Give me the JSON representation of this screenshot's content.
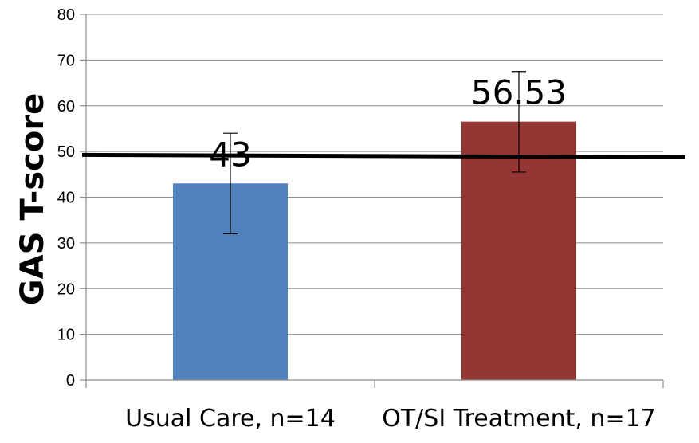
{
  "chart_data": {
    "type": "bar",
    "categories": [
      "Usual Care,  n=14",
      "OT/SI Treatment, n=17"
    ],
    "values": [
      43,
      56.53
    ],
    "data_labels": [
      "43",
      "56.53"
    ],
    "error_bars": [
      {
        "low": 32,
        "high": 54
      },
      {
        "low": 45.5,
        "high": 67.5
      }
    ],
    "reference_line": 49,
    "ylabel": "GAS T-score",
    "ylim": [
      0,
      80
    ],
    "yticks": [
      0,
      10,
      20,
      30,
      40,
      50,
      60,
      70,
      80
    ],
    "grid": true,
    "bar_colors": [
      "#4f81bd",
      "#943634"
    ]
  }
}
